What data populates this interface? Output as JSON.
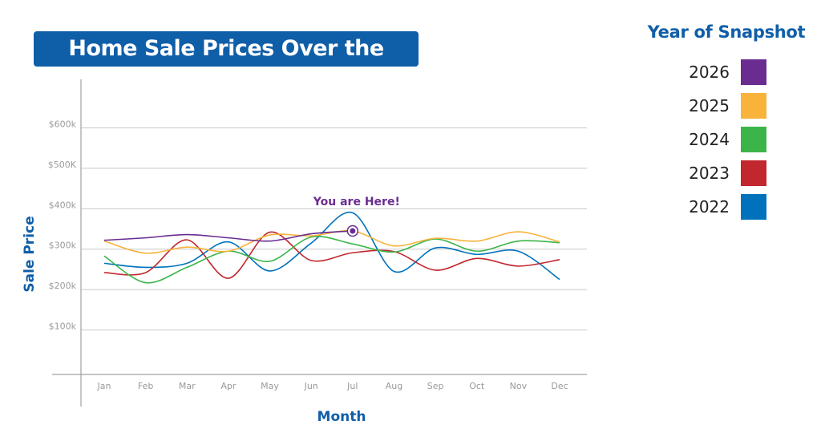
{
  "chart_data": {
    "type": "line",
    "title": "Home Sale Prices Over the Years",
    "xlabel": "Month",
    "ylabel": "Sale Price",
    "categories": [
      "Jan",
      "Feb",
      "Mar",
      "Apr",
      "May",
      "Jun",
      "Jul",
      "Aug",
      "Sep",
      "Oct",
      "Nov",
      "Dec"
    ],
    "yticks": [
      {
        "value": 100000,
        "label": "$100k"
      },
      {
        "value": 200000,
        "label": "$200k"
      },
      {
        "value": 300000,
        "label": "$300k"
      },
      {
        "value": 400000,
        "label": "$400k"
      },
      {
        "value": 500000,
        "label": "$500K"
      },
      {
        "value": 600000,
        "label": "$600k"
      }
    ],
    "ylim": [
      -10000,
      720000
    ],
    "grid": true,
    "legend": {
      "title": "Year of Snapshot",
      "placement": "right"
    },
    "series": [
      {
        "name": "2026",
        "color": "#6a2c91",
        "values": [
          322000,
          328000,
          336000,
          328000,
          320000,
          338000,
          345000,
          null,
          null,
          null,
          null,
          null
        ]
      },
      {
        "name": "2025",
        "color": "#f9b33b",
        "values": [
          320000,
          290000,
          305000,
          295000,
          335000,
          333000,
          345000,
          308000,
          327000,
          320000,
          343000,
          318000
        ]
      },
      {
        "name": "2024",
        "color": "#3bb54a",
        "values": [
          283000,
          217000,
          255000,
          295000,
          270000,
          330000,
          313000,
          293000,
          325000,
          295000,
          320000,
          316000
        ]
      },
      {
        "name": "2023",
        "color": "#c1272d",
        "values": [
          242000,
          242000,
          323000,
          228000,
          342000,
          272000,
          291000,
          294000,
          248000,
          277000,
          258000,
          274000
        ]
      },
      {
        "name": "2022",
        "color": "#0072bc",
        "values": [
          265000,
          255000,
          265000,
          318000,
          246000,
          315000,
          390000,
          245000,
          303000,
          287000,
          295000,
          225000
        ]
      }
    ],
    "annotation": {
      "text": "You are Here!",
      "x": "Jul",
      "y": 345000,
      "series": "2026"
    }
  }
}
